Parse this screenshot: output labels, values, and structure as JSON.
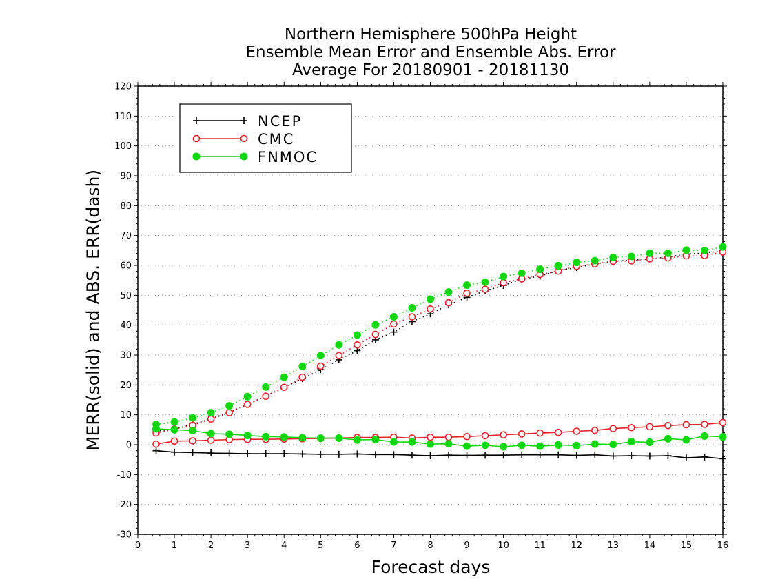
{
  "chart_data": {
    "type": "line",
    "title": [
      "Northern Hemisphere 500hPa Height",
      "Ensemble Mean Error and Ensemble Abs. Error",
      "Average For 20180901 - 20181130"
    ],
    "xlabel": "Forecast days",
    "ylabel": "MERR(solid) and ABS. ERR(dash)",
    "xlim": [
      0,
      16
    ],
    "ylim": [
      -30,
      120
    ],
    "xticks": [
      0,
      1,
      2,
      3,
      4,
      5,
      6,
      7,
      8,
      9,
      10,
      11,
      12,
      13,
      14,
      15,
      16
    ],
    "yticks": [
      -30,
      -20,
      -10,
      0,
      10,
      20,
      30,
      40,
      50,
      60,
      70,
      80,
      90,
      100,
      110,
      120
    ],
    "grid": "horizontal dotted",
    "legend_position": "top-left",
    "x": [
      0.5,
      1,
      1.5,
      2,
      2.5,
      3,
      3.5,
      4,
      4.5,
      5,
      5.5,
      6,
      6.5,
      7,
      7.5,
      8,
      8.5,
      9,
      9.5,
      10,
      10.5,
      11,
      11.5,
      12,
      12.5,
      13,
      13.5,
      14,
      14.5,
      15,
      15.5,
      16
    ],
    "series": [
      {
        "name": "NCEP",
        "color": "#000000",
        "marker": "plus",
        "merr": [
          -2,
          -2.5,
          -2.6,
          -2.8,
          -2.9,
          -3,
          -3,
          -3,
          -3.1,
          -3.2,
          -3.2,
          -3.1,
          -3.3,
          -3.3,
          -3.5,
          -3.7,
          -3.5,
          -3.6,
          -3.5,
          -3.5,
          -3.4,
          -3.4,
          -3.4,
          -3.6,
          -3.4,
          -3.8,
          -3.7,
          -3.8,
          -3.7,
          -4.4,
          -4.1,
          -4.7
        ],
        "abs_err": [
          4.5,
          5.3,
          6.8,
          8.7,
          10.8,
          13.5,
          16.3,
          19.2,
          22.1,
          25.1,
          28.4,
          31.5,
          35.1,
          37.7,
          41.2,
          43.8,
          46.8,
          49.3,
          51.5,
          53.3,
          55.4,
          56.4,
          58.3,
          59.3,
          60.5,
          61.4,
          61.7,
          62.2,
          62.8,
          63.8,
          64.1,
          64.9
        ]
      },
      {
        "name": "CMC",
        "color": "#e8202a",
        "marker": "open-circle",
        "merr": [
          0.2,
          1.2,
          1.3,
          1.5,
          1.7,
          1.8,
          1.8,
          1.9,
          2,
          2.1,
          2.2,
          2.4,
          2.4,
          2.5,
          2.2,
          2.5,
          2.5,
          2.7,
          3,
          3.3,
          3.6,
          3.9,
          4.1,
          4.5,
          4.8,
          5.4,
          5.7,
          6,
          6.4,
          6.7,
          6.8,
          7.4
        ],
        "abs_err": [
          3.9,
          5.2,
          6.5,
          8.6,
          10.7,
          13.5,
          16.2,
          19.2,
          22.6,
          26.3,
          29.8,
          33.4,
          36.9,
          40.4,
          42.8,
          45.4,
          47.5,
          50.7,
          52,
          54.2,
          55.5,
          57,
          58.1,
          59.7,
          60.5,
          61.4,
          61.5,
          62.2,
          62.5,
          63.2,
          63.3,
          64.5
        ]
      },
      {
        "name": "FNMOC",
        "color": "#11d711",
        "marker": "filled-circle",
        "merr": [
          5.3,
          5,
          4.7,
          3.7,
          3.5,
          3.1,
          2.7,
          2.6,
          2.3,
          2.2,
          2.2,
          1.6,
          1.7,
          0.9,
          0.9,
          0.2,
          0.3,
          -0.5,
          -0.2,
          -0.7,
          -0.2,
          -0.5,
          -0.1,
          -0.3,
          0.2,
          0.1,
          1,
          0.8,
          2,
          1.6,
          2.9,
          2.6
        ],
        "abs_err": [
          6.8,
          7.6,
          9,
          10.7,
          13,
          16.1,
          19.3,
          22.6,
          26.2,
          29.8,
          33.4,
          36.7,
          40.1,
          42.8,
          45.8,
          48.7,
          51.1,
          53.4,
          54.4,
          56.3,
          57.4,
          58.7,
          59.9,
          61,
          61.6,
          62.7,
          63,
          64.1,
          64.1,
          65.1,
          65,
          66.2
        ]
      }
    ]
  }
}
